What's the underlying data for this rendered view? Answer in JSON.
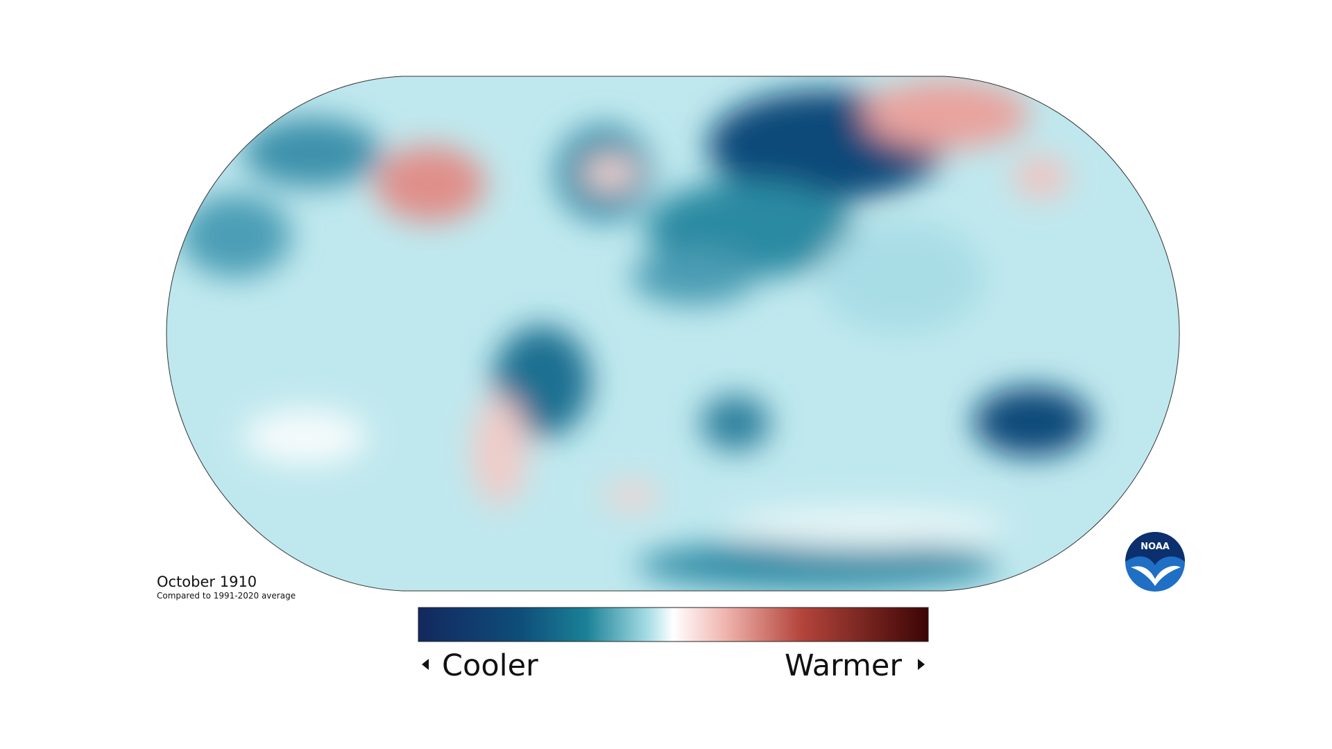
{
  "map": {
    "title": "October 1910",
    "subtitle": "Compared to 1991-2020 average"
  },
  "legend": {
    "low_label": "Cooler",
    "high_label": "Warmer"
  },
  "logo": {
    "label": "NOAA"
  }
}
